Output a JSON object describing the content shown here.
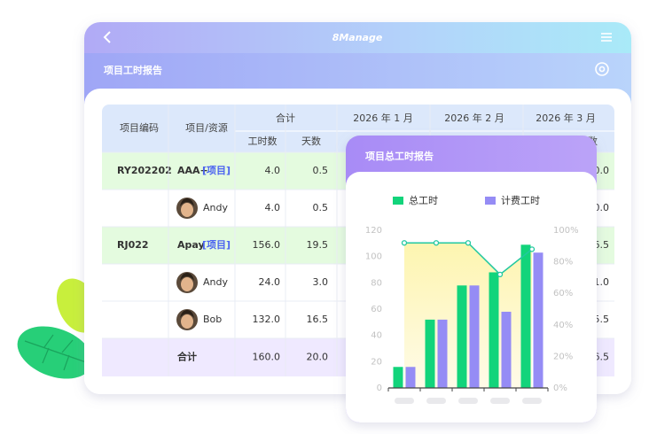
{
  "app": {
    "logo": "8Manage",
    "page_title": "项目工时报告"
  },
  "table": {
    "header": {
      "code": "项目编码",
      "item": "项目/资源",
      "total": "合计",
      "months": [
        "2026 年 1 月",
        "2026 年 2 月",
        "2026 年 3 月"
      ],
      "hours": "工时数",
      "days": "天数",
      "tail": "数"
    },
    "rows": [
      {
        "code": "RY202202",
        "item": "AAA+",
        "tag": "[项目]",
        "hours": "4.0",
        "days": "0.5",
        "tail": "0.0"
      },
      {
        "item": "Andy",
        "hours": "4.0",
        "days": "0.5",
        "tail": "0.0"
      },
      {
        "code": "RJ022",
        "item": "Apay",
        "tag": "[项目]",
        "hours": "156.0",
        "days": "19.5",
        "tail": "6.5"
      },
      {
        "item": "Andy",
        "hours": "24.0",
        "days": "3.0",
        "tail": "1.0"
      },
      {
        "item": "Bob",
        "hours": "132.0",
        "days": "16.5",
        "tail": "5.5"
      }
    ],
    "total_row": {
      "item": "合计",
      "hours": "160.0",
      "days": "20.0",
      "tail": "6.5"
    }
  },
  "chart_data": {
    "type": "bar",
    "title": "项目总工时报告",
    "categories": [
      null,
      null,
      null,
      null,
      null
    ],
    "series": [
      {
        "name": "总工时",
        "color": "#12d47b",
        "values": [
          16,
          52,
          78,
          88,
          109
        ]
      },
      {
        "name": "计费工时",
        "color": "#958cf5",
        "values": [
          16,
          52,
          78,
          58,
          103
        ]
      },
      {
        "type": "line",
        "axis": "y2",
        "color": "#22c8a0",
        "values": [
          92,
          92,
          92,
          72,
          88
        ]
      }
    ],
    "ylim": [
      0,
      120
    ],
    "yticks": [
      0,
      20,
      40,
      60,
      80,
      100,
      120
    ],
    "y2lim": [
      0,
      100
    ],
    "y2ticks": [
      {
        "value": 0,
        "label": "0%"
      },
      {
        "value": 20,
        "label": "20%"
      },
      {
        "value": 40,
        "label": "40%"
      },
      {
        "value": 60,
        "label": "60%"
      },
      {
        "value": 80,
        "label": "80%"
      },
      {
        "value": 100,
        "label": "100%"
      }
    ]
  }
}
